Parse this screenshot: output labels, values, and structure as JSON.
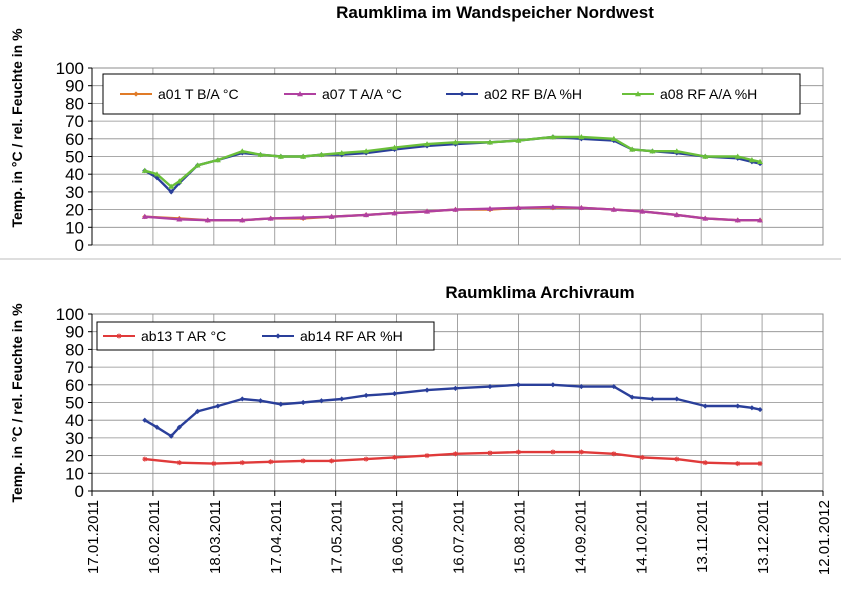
{
  "chart_data": [
    {
      "type": "line",
      "title": "Raumklima im Wandspeicher Nordwest",
      "ylabel": "Temp. in °C / rel. Feuchte in %",
      "ylim": [
        0,
        100
      ],
      "yticks": [
        "0",
        "10",
        "20",
        "30",
        "40",
        "50",
        "60",
        "70",
        "80",
        "90",
        "100"
      ],
      "grid": true,
      "legend": "top",
      "series": [
        {
          "name": "a01 T B/A °C",
          "color": "#e07b28",
          "marker": "diamond",
          "x": [
            "2011-02-12",
            "2011-03-01",
            "2011-03-15",
            "2011-04-01",
            "2011-04-15",
            "2011-05-01",
            "2011-05-15",
            "2011-06-01",
            "2011-06-15",
            "2011-07-01",
            "2011-07-15",
            "2011-08-01",
            "2011-08-15",
            "2011-09-01",
            "2011-09-15",
            "2011-10-01",
            "2011-10-15",
            "2011-11-01",
            "2011-11-15",
            "2011-12-01",
            "2011-12-12"
          ],
          "y": [
            16,
            15,
            14,
            14,
            15,
            15,
            16,
            17,
            18,
            19,
            20,
            20,
            21,
            21,
            21,
            20,
            19,
            17,
            15,
            14,
            14
          ]
        },
        {
          "name": "a07 T A/A °C",
          "color": "#b040a0",
          "marker": "triangle",
          "x": [
            "2011-02-12",
            "2011-03-01",
            "2011-03-15",
            "2011-04-01",
            "2011-04-15",
            "2011-05-01",
            "2011-05-15",
            "2011-06-01",
            "2011-06-15",
            "2011-07-01",
            "2011-07-15",
            "2011-08-01",
            "2011-08-15",
            "2011-09-01",
            "2011-09-15",
            "2011-10-01",
            "2011-10-15",
            "2011-11-01",
            "2011-11-15",
            "2011-12-01",
            "2011-12-12"
          ],
          "y": [
            16,
            14.5,
            14,
            14,
            15,
            15.5,
            16,
            17,
            18,
            19,
            20,
            20.5,
            21,
            21.5,
            21,
            20,
            19,
            17,
            15,
            14,
            14
          ]
        },
        {
          "name": "a02 RF B/A %H",
          "color": "#2a3f9a",
          "marker": "diamond",
          "x": [
            "2011-02-12",
            "2011-02-18",
            "2011-02-25",
            "2011-03-01",
            "2011-03-10",
            "2011-03-20",
            "2011-04-01",
            "2011-04-10",
            "2011-04-20",
            "2011-05-01",
            "2011-05-10",
            "2011-05-20",
            "2011-06-01",
            "2011-06-15",
            "2011-07-01",
            "2011-07-15",
            "2011-08-01",
            "2011-08-15",
            "2011-09-01",
            "2011-09-15",
            "2011-10-01",
            "2011-10-10",
            "2011-10-20",
            "2011-11-01",
            "2011-11-15",
            "2011-12-01",
            "2011-12-08",
            "2011-12-12"
          ],
          "y": [
            42,
            38,
            30,
            35,
            45,
            48,
            52,
            51,
            50,
            50,
            51,
            51,
            52,
            54,
            56,
            57,
            58,
            59,
            61,
            60,
            59,
            54,
            53,
            52,
            50,
            49,
            47,
            46
          ]
        },
        {
          "name": "a08 RF A/A %H",
          "color": "#6abf3a",
          "marker": "triangle",
          "x": [
            "2011-02-12",
            "2011-02-18",
            "2011-02-25",
            "2011-03-01",
            "2011-03-10",
            "2011-03-20",
            "2011-04-01",
            "2011-04-10",
            "2011-04-20",
            "2011-05-01",
            "2011-05-10",
            "2011-05-20",
            "2011-06-01",
            "2011-06-15",
            "2011-07-01",
            "2011-07-15",
            "2011-08-01",
            "2011-08-15",
            "2011-09-01",
            "2011-09-15",
            "2011-10-01",
            "2011-10-10",
            "2011-10-20",
            "2011-11-01",
            "2011-11-15",
            "2011-12-01",
            "2011-12-08",
            "2011-12-12"
          ],
          "y": [
            42,
            40,
            33,
            36,
            45,
            48,
            53,
            51,
            50,
            50,
            51,
            52,
            53,
            55,
            57,
            58,
            58,
            59,
            61,
            61,
            60,
            54,
            53,
            53,
            50,
            50,
            48,
            47
          ]
        }
      ]
    },
    {
      "type": "line",
      "title": "Raumklima Archivraum",
      "ylabel": "Temp. in °C / rel. Feuchte in %",
      "ylim": [
        0,
        100
      ],
      "yticks": [
        "0",
        "10",
        "20",
        "30",
        "40",
        "50",
        "60",
        "70",
        "80",
        "90",
        "100"
      ],
      "grid": true,
      "legend": "top-left",
      "xtick_labels": [
        "17.01.2011",
        "16.02.2011",
        "18.03.2011",
        "17.04.2011",
        "17.05.2011",
        "16.06.2011",
        "16.07.2011",
        "15.08.2011",
        "14.09.2011",
        "14.10.2011",
        "13.11.2011",
        "13.12.2011",
        "12.01.2012"
      ],
      "series": [
        {
          "name": "ab13 T AR °C",
          "color": "#e03a3a",
          "marker": "star",
          "x": [
            "2011-02-12",
            "2011-03-01",
            "2011-03-18",
            "2011-04-01",
            "2011-04-15",
            "2011-05-01",
            "2011-05-15",
            "2011-06-01",
            "2011-06-15",
            "2011-07-01",
            "2011-07-15",
            "2011-08-01",
            "2011-08-15",
            "2011-09-01",
            "2011-09-15",
            "2011-10-01",
            "2011-10-15",
            "2011-11-01",
            "2011-11-15",
            "2011-12-01",
            "2011-12-12"
          ],
          "y": [
            18,
            16,
            15.5,
            16,
            16.5,
            17,
            17,
            18,
            19,
            20,
            21,
            21.5,
            22,
            22,
            22,
            21,
            19,
            18,
            16,
            15.5,
            15.5
          ]
        },
        {
          "name": "ab14 RF AR %H",
          "color": "#2a3f9a",
          "marker": "diamond",
          "x": [
            "2011-02-12",
            "2011-02-18",
            "2011-02-25",
            "2011-03-01",
            "2011-03-10",
            "2011-03-20",
            "2011-04-01",
            "2011-04-10",
            "2011-04-20",
            "2011-05-01",
            "2011-05-10",
            "2011-05-20",
            "2011-06-01",
            "2011-06-15",
            "2011-07-01",
            "2011-07-15",
            "2011-08-01",
            "2011-08-15",
            "2011-09-01",
            "2011-09-15",
            "2011-10-01",
            "2011-10-10",
            "2011-10-20",
            "2011-11-01",
            "2011-11-15",
            "2011-12-01",
            "2011-12-08",
            "2011-12-12"
          ],
          "y": [
            40,
            36,
            31,
            36,
            45,
            48,
            52,
            51,
            49,
            50,
            51,
            52,
            54,
            55,
            57,
            58,
            59,
            60,
            60,
            59,
            59,
            53,
            52,
            52,
            48,
            48,
            47,
            46
          ]
        }
      ]
    }
  ]
}
